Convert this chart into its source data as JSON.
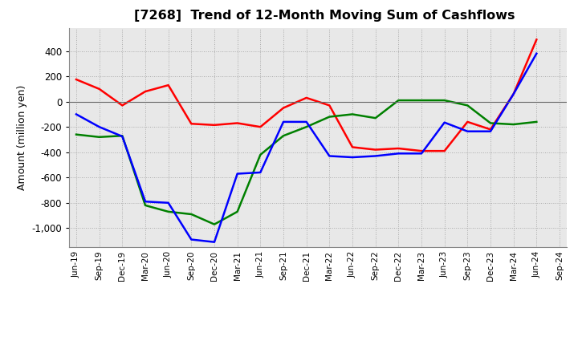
{
  "title": "[7268]  Trend of 12-Month Moving Sum of Cashflows",
  "ylabel": "Amount (million yen)",
  "x_labels": [
    "Jun-19",
    "Sep-19",
    "Dec-19",
    "Mar-20",
    "Jun-20",
    "Sep-20",
    "Dec-20",
    "Mar-21",
    "Jun-21",
    "Sep-21",
    "Dec-21",
    "Mar-22",
    "Jun-22",
    "Sep-22",
    "Dec-22",
    "Mar-23",
    "Jun-23",
    "Sep-23",
    "Dec-23",
    "Mar-24",
    "Jun-24",
    "Sep-24"
  ],
  "operating": [
    175,
    100,
    -30,
    80,
    130,
    -175,
    -185,
    -170,
    -200,
    -50,
    30,
    -30,
    -360,
    -380,
    -370,
    -390,
    -390,
    -160,
    -220,
    60,
    490,
    null
  ],
  "investing": [
    -260,
    -280,
    -270,
    -820,
    -870,
    -890,
    -970,
    -870,
    -420,
    -270,
    -200,
    -120,
    -100,
    -130,
    10,
    10,
    10,
    -30,
    -170,
    -180,
    -160,
    null
  ],
  "free": [
    -100,
    -200,
    -275,
    -790,
    -800,
    -1090,
    -1110,
    -570,
    -560,
    -160,
    -160,
    -430,
    -440,
    -430,
    -410,
    -410,
    -165,
    -235,
    -235,
    60,
    380,
    null
  ],
  "operating_color": "#FF0000",
  "investing_color": "#008000",
  "free_color": "#0000FF",
  "background_color": "#FFFFFF",
  "plot_bg_color": "#E8E8E8",
  "ylim": [
    -1150,
    580
  ],
  "yticks": [
    -1000,
    -800,
    -600,
    -400,
    -200,
    0,
    200,
    400
  ]
}
